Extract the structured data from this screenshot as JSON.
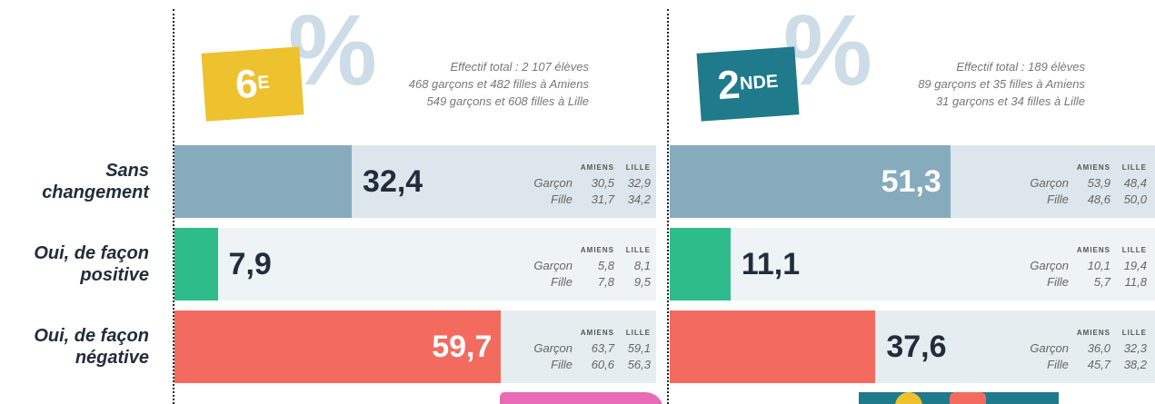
{
  "row_labels": [
    "Sans changement",
    "Oui, de façon positive",
    "Oui, de façon négative"
  ],
  "breakdown_columns": [
    "AMIENS",
    "LILLE"
  ],
  "breakdown_rows": [
    "Garçon",
    "Fille"
  ],
  "chart_data": [
    {
      "type": "bar",
      "badge": "6",
      "badge_sup": "E",
      "badge_color": "#eec12e",
      "symbol": "%",
      "notes": [
        "Effectif total : 2 107 élèves",
        "468 garçons et 482 filles à Amiens",
        "549 garçons et 608 filles à Lille"
      ],
      "values": [
        32.4,
        7.9,
        59.7
      ],
      "value_labels": [
        "32,4",
        "7,9",
        "59,7"
      ],
      "colors": [
        "#86abbd",
        "#2ebd8a",
        "#f26b5e"
      ],
      "breakdown": [
        [
          [
            "30,5",
            "32,9"
          ],
          [
            "31,7",
            "34,2"
          ]
        ],
        [
          [
            "5,8",
            "8,1"
          ],
          [
            "7,8",
            "9,5"
          ]
        ],
        [
          [
            "63,7",
            "59,1"
          ],
          [
            "60,6",
            "56,3"
          ]
        ]
      ]
    },
    {
      "type": "bar",
      "badge": "2",
      "badge_sup": "NDE",
      "badge_color": "#1f7a8c",
      "symbol": "%",
      "notes": [
        "Effectif total : 189 élèves",
        "89 garçons et 35 filles à Amiens",
        "31 garçons et 34 filles à Lille"
      ],
      "values": [
        51.3,
        11.1,
        37.6
      ],
      "value_labels": [
        "51,3",
        "11,1",
        "37,6"
      ],
      "colors": [
        "#86abbd",
        "#2ebd8a",
        "#f26b5e"
      ],
      "breakdown": [
        [
          [
            "53,9",
            "48,4"
          ],
          [
            "48,6",
            "50,0"
          ]
        ],
        [
          [
            "10,1",
            "19,4"
          ],
          [
            "5,7",
            "11,8"
          ]
        ],
        [
          [
            "36,0",
            "32,3"
          ],
          [
            "45,7",
            "38,2"
          ]
        ]
      ]
    }
  ]
}
